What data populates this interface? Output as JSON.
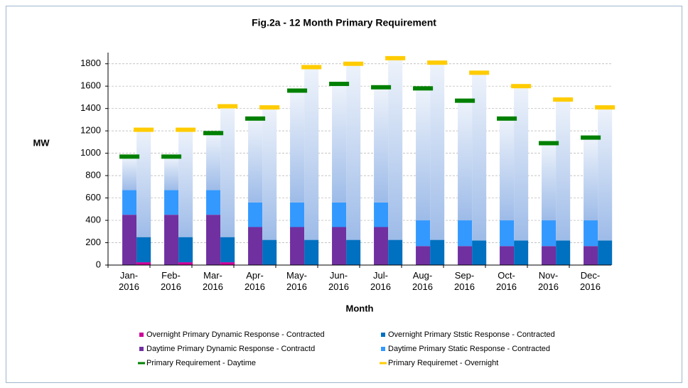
{
  "chart_data": {
    "type": "stacked-bar-requirement",
    "title": "Fig.2a - 12 Month Primary Requirement",
    "x_label": "Month",
    "y_label": "MW",
    "categories": [
      "Jan-2016",
      "Feb-2016",
      "Mar-2016",
      "Apr-2016",
      "May-2016",
      "Jun-2016",
      "Jul-2016",
      "Aug-2016",
      "Sep-2016",
      "Oct-2016",
      "Nov-2016",
      "Dec-2016"
    ],
    "ylim": [
      0,
      1900
    ],
    "yticks": [
      0,
      200,
      400,
      600,
      800,
      1000,
      1200,
      1400,
      1600,
      1800
    ],
    "grid": true,
    "series": [
      {
        "name": "Overnight Primary Dynamic Response - Contracted",
        "color": "#cc0099",
        "stack": "night",
        "kind": "bar",
        "values": [
          25,
          25,
          25,
          0,
          0,
          0,
          0,
          0,
          0,
          0,
          0,
          0
        ]
      },
      {
        "name": "Overnight Primary Ststic Response - Contracted",
        "color": "#0070c0",
        "stack": "night",
        "kind": "bar",
        "values": [
          225,
          225,
          225,
          225,
          225,
          225,
          225,
          225,
          220,
          220,
          220,
          220
        ]
      },
      {
        "name": "Daytime Primary Dynamic Response - Contractd",
        "color": "#7030a0",
        "stack": "day",
        "kind": "bar",
        "values": [
          450,
          450,
          450,
          340,
          340,
          340,
          340,
          170,
          170,
          170,
          170,
          170
        ]
      },
      {
        "name": "Daytime Primary Static Response - Contracted",
        "color": "#3399ff",
        "stack": "day",
        "kind": "bar",
        "values": [
          220,
          220,
          220,
          220,
          220,
          220,
          220,
          230,
          230,
          230,
          230,
          230
        ]
      },
      {
        "name": "Primary Requirement - Daytime",
        "color": "#008000",
        "stack": "day",
        "kind": "marker",
        "values": [
          970,
          970,
          1180,
          1310,
          1560,
          1620,
          1590,
          1580,
          1470,
          1310,
          1090,
          1140
        ]
      },
      {
        "name": "Primary Requiremet - Overnight",
        "color": "#ffcc00",
        "stack": "night",
        "kind": "marker",
        "values": [
          1210,
          1210,
          1420,
          1410,
          1770,
          1800,
          1850,
          1810,
          1720,
          1600,
          1480,
          1410
        ]
      }
    ]
  }
}
